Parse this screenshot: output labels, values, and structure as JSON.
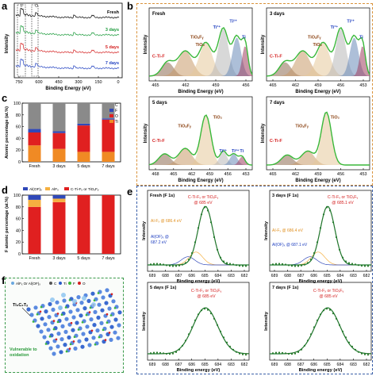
{
  "panels": {
    "a": "a",
    "b": "b",
    "c": "c",
    "d": "d",
    "e": "e",
    "f": "f"
  },
  "panel_a": {
    "xlabel": "Binding Energy (eV)",
    "ylabel": "Intensity",
    "xticks": [
      "750",
      "600",
      "450",
      "300",
      "150",
      "0"
    ],
    "series_labels": [
      "Fresh",
      "3 days",
      "5 days",
      "7 days"
    ],
    "series_colors": [
      "#000000",
      "#1a9a3a",
      "#d42020",
      "#2040c0"
    ],
    "peak_labels": [
      "F",
      "O"
    ]
  },
  "panel_b": {
    "xlabel": "Binding Energy (eV)",
    "ylabel": "Intensity",
    "subplots": [
      {
        "title": "Fresh",
        "xticks": [
          "465",
          "462",
          "459",
          "456"
        ],
        "labels": [
          "Ti²⁺",
          "Ti³⁺",
          "TiOₓFᵧ",
          "TiO₂",
          "C-Ti-F",
          "Ti"
        ]
      },
      {
        "title": "3 days",
        "xticks": [
          "465",
          "462",
          "459",
          "456",
          "453"
        ],
        "labels": [
          "Ti²⁺",
          "Ti³⁺",
          "TiOₓFᵧ",
          "TiO₂",
          "C-Ti-F",
          "Ti"
        ]
      },
      {
        "title": "5 days",
        "xticks": [
          "468",
          "465",
          "462",
          "459",
          "456",
          "453"
        ],
        "labels": [
          "TiO₂",
          "TiOₓFᵧ",
          "C-Ti-F",
          "Ti³⁺",
          "Ti²⁺",
          "Ti"
        ]
      },
      {
        "title": "7 days",
        "xticks": [
          "465",
          "462",
          "459",
          "456",
          "453"
        ],
        "labels": [
          "TiO₂",
          "TiOₓFᵧ",
          "C-Ti-F"
        ]
      }
    ]
  },
  "panel_e": {
    "xlabel": "Binding energy (eV)",
    "ylabel": "Intensity",
    "xticks": [
      "689",
      "688",
      "687",
      "686",
      "685",
      "684",
      "683",
      "682"
    ],
    "subplots": [
      {
        "title": "Fresh (F 1s)",
        "annot": [
          "C-Ti-Fₓ or TiOₓFᵧ",
          "@ 685 eV",
          "AI-Fₓ @ 686.4 eV",
          "Al(OF)ₓ @",
          "687.2 eV"
        ]
      },
      {
        "title": "3 days (F 1s)",
        "annot": [
          "C-Ti-Fₓ or TiOₓFᵧ",
          "@ 685.1 eV",
          "AI-Fₓ @ 686.4 eV",
          "Al(OF)ₓ @ 687.1 eV"
        ]
      },
      {
        "title": "5 days (F 1s)",
        "annot": [
          "C-Ti-Fₓ or TiOₓFᵧ",
          "@ 685 eV"
        ]
      },
      {
        "title": "7 days (F 1s)",
        "annot": [
          "C-Ti-Fₓ or TiOₓFᵧ",
          "@ 685 eV"
        ]
      }
    ]
  },
  "panel_f": {
    "legend": [
      "AlFₓ Or Al(OF)ₓ",
      "C",
      "Ti",
      "F",
      "O"
    ],
    "texts": [
      "Ti₃C₂Tₓ",
      "Vulnerable to",
      "oxidation"
    ]
  },
  "chart_data": [
    {
      "type": "bar",
      "panel": "c",
      "stacked": true,
      "ylabel": "Atomic percentage (at.%)",
      "categories": [
        "Fresh",
        "3 days",
        "5 days",
        "7 days"
      ],
      "ylim": [
        0,
        100
      ],
      "yticks": [
        "0",
        "20",
        "40",
        "60",
        "80",
        "100"
      ],
      "series": [
        {
          "name": "Ti",
          "color": "#f08a24",
          "values": [
            28,
            22,
            17,
            17
          ]
        },
        {
          "name": "O",
          "color": "#e02020",
          "values": [
            22,
            27,
            45,
            55
          ]
        },
        {
          "name": "F",
          "color": "#3048b8",
          "values": [
            6,
            3,
            3,
            2
          ]
        },
        {
          "name": "C",
          "color": "#8a8a8a",
          "values": [
            44,
            48,
            35,
            26
          ]
        }
      ],
      "legend_position": "top-right"
    },
    {
      "type": "bar",
      "panel": "d",
      "stacked": true,
      "ylabel": "F atomic percentage (at.%)",
      "categories": [
        "Fresh",
        "3 days",
        "5 days",
        "7 days"
      ],
      "ylim": [
        0,
        100
      ],
      "yticks": [
        "0",
        "20",
        "40",
        "60",
        "80",
        "100"
      ],
      "series": [
        {
          "name": "C-Ti-Fₓ or TiOₓFᵧ",
          "color": "#e02020",
          "values": [
            80,
            88,
            100,
            100
          ]
        },
        {
          "name": "AlFₓ",
          "color": "#f5b040",
          "values": [
            12,
            6,
            0,
            0
          ]
        },
        {
          "name": "Al(OF)ₓ",
          "color": "#3048b8",
          "values": [
            8,
            6,
            0,
            0
          ]
        }
      ],
      "legend_position": "top"
    }
  ]
}
